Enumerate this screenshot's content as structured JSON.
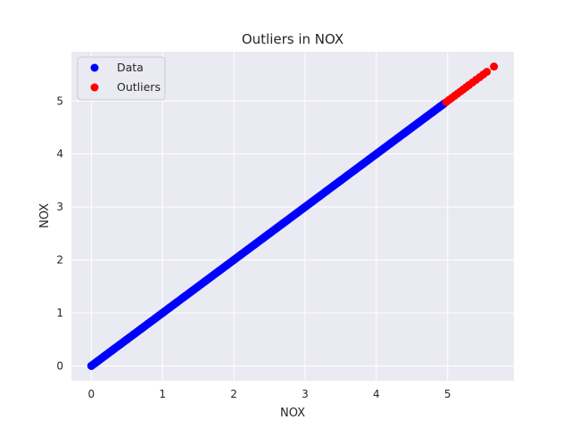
{
  "chart_data": {
    "type": "scatter",
    "title": "Outliers in NOX",
    "xlabel": "NOX",
    "ylabel": "NOX",
    "xlim": [
      -0.28,
      5.93
    ],
    "ylim": [
      -0.28,
      5.93
    ],
    "xticks": [
      0,
      1,
      2,
      3,
      4,
      5
    ],
    "yticks": [
      0,
      1,
      2,
      3,
      4,
      5
    ],
    "grid": true,
    "legend_position": "top-left",
    "background": "#eaeaf2",
    "series": [
      {
        "name": "Data",
        "color": "#0000ff",
        "x": [
          0.0,
          0.05,
          0.1,
          0.2,
          0.3,
          0.4,
          0.5,
          0.6,
          0.7,
          0.8,
          0.9,
          1.0,
          1.1,
          1.2,
          1.3,
          1.4,
          1.5,
          1.6,
          1.7,
          1.8,
          1.9,
          2.0,
          2.1,
          2.2,
          2.3,
          2.4,
          2.5,
          2.6,
          2.7,
          2.8,
          2.9,
          3.0,
          3.1,
          3.2,
          3.3,
          3.4,
          3.5,
          3.6,
          3.7,
          3.8,
          3.9,
          4.0,
          4.1,
          4.2,
          4.3,
          4.4,
          4.5,
          4.6,
          4.7,
          4.8,
          4.9,
          4.95
        ],
        "y": [
          0.0,
          0.05,
          0.1,
          0.2,
          0.3,
          0.4,
          0.5,
          0.6,
          0.7,
          0.8,
          0.9,
          1.0,
          1.1,
          1.2,
          1.3,
          1.4,
          1.5,
          1.6,
          1.7,
          1.8,
          1.9,
          2.0,
          2.1,
          2.2,
          2.3,
          2.4,
          2.5,
          2.6,
          2.7,
          2.8,
          2.9,
          3.0,
          3.1,
          3.2,
          3.3,
          3.4,
          3.5,
          3.6,
          3.7,
          3.8,
          3.9,
          4.0,
          4.1,
          4.2,
          4.3,
          4.4,
          4.5,
          4.6,
          4.7,
          4.8,
          4.9,
          4.95
        ]
      },
      {
        "name": "Outliers",
        "color": "#ff0000",
        "x": [
          4.98,
          5.02,
          5.06,
          5.1,
          5.14,
          5.18,
          5.22,
          5.26,
          5.3,
          5.35,
          5.4,
          5.45,
          5.5,
          5.55,
          5.65
        ],
        "y": [
          4.98,
          5.02,
          5.06,
          5.1,
          5.14,
          5.18,
          5.22,
          5.26,
          5.3,
          5.35,
          5.4,
          5.45,
          5.5,
          5.55,
          5.65
        ]
      }
    ]
  }
}
